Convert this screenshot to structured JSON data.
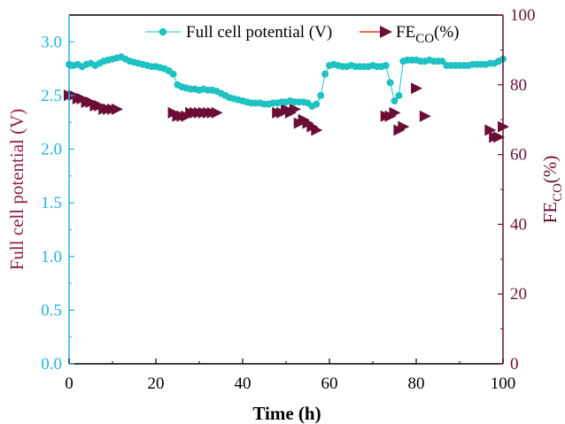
{
  "chart_data": {
    "type": "scatter",
    "colors": {
      "potential": "#1ec2c2",
      "fe": "#6b0e35",
      "left_axis": "#1eb4e6",
      "right_axis": "#6b0e35",
      "left_title": "#8c1e4a",
      "legend_line": "#ff0000"
    },
    "xlabel": "Time (h)",
    "xlim": [
      0,
      100
    ],
    "xticks": [
      0,
      20,
      40,
      60,
      80,
      100
    ],
    "ylabel_left": "Full cell potential (V)",
    "ylim_left": [
      0.0,
      3.25
    ],
    "yticks_left": [
      "0.0",
      "0.5",
      "1.0",
      "1.5",
      "2.0",
      "2.5",
      "3.0"
    ],
    "ylabel_right": "FE",
    "ylabel_right_sub": "CO",
    "ylabel_right_suffix": "(%)",
    "ylim_right": [
      0,
      100
    ],
    "yticks_right": [
      "0",
      "20",
      "40",
      "60",
      "80",
      "100"
    ],
    "legend": {
      "placement": "top-right",
      "potential_label": "Full cell potential (V)",
      "fe_label_main": "FE",
      "fe_label_sub": "CO",
      "fe_label_suffix": "(%)"
    },
    "series": [
      {
        "name": "Full cell potential (V)",
        "axis": "left",
        "marker": "circle",
        "line": true,
        "x": [
          0,
          1,
          2,
          3,
          4,
          5,
          6,
          7,
          8,
          9,
          10,
          11,
          12,
          13,
          14,
          15,
          16,
          17,
          18,
          19,
          20,
          21,
          22,
          23,
          24,
          25,
          26,
          27,
          28,
          29,
          30,
          31,
          32,
          33,
          34,
          35,
          36,
          37,
          38,
          39,
          40,
          41,
          42,
          43,
          44,
          45,
          46,
          47,
          48,
          49,
          50,
          51,
          52,
          53,
          54,
          55,
          56,
          57,
          58,
          59,
          60,
          61,
          62,
          63,
          64,
          65,
          66,
          67,
          68,
          69,
          70,
          71,
          72,
          73,
          74,
          75,
          76,
          77,
          78,
          79,
          80,
          81,
          82,
          83,
          84,
          85,
          86,
          87,
          88,
          89,
          90,
          91,
          92,
          93,
          94,
          95,
          96,
          97,
          98,
          99,
          100
        ],
        "y": [
          2.79,
          2.78,
          2.79,
          2.77,
          2.79,
          2.8,
          2.78,
          2.8,
          2.82,
          2.83,
          2.84,
          2.85,
          2.86,
          2.84,
          2.82,
          2.81,
          2.8,
          2.79,
          2.78,
          2.77,
          2.77,
          2.76,
          2.75,
          2.73,
          2.7,
          2.6,
          2.58,
          2.57,
          2.56,
          2.56,
          2.55,
          2.56,
          2.55,
          2.55,
          2.54,
          2.52,
          2.5,
          2.48,
          2.47,
          2.46,
          2.45,
          2.44,
          2.43,
          2.43,
          2.43,
          2.42,
          2.42,
          2.43,
          2.43,
          2.44,
          2.44,
          2.45,
          2.44,
          2.44,
          2.44,
          2.43,
          2.4,
          2.42,
          2.5,
          2.7,
          2.78,
          2.79,
          2.78,
          2.77,
          2.77,
          2.78,
          2.77,
          2.77,
          2.77,
          2.77,
          2.78,
          2.77,
          2.77,
          2.78,
          2.62,
          2.45,
          2.5,
          2.82,
          2.83,
          2.83,
          2.83,
          2.82,
          2.82,
          2.83,
          2.82,
          2.82,
          2.82,
          2.78,
          2.78,
          2.78,
          2.78,
          2.78,
          2.78,
          2.79,
          2.79,
          2.79,
          2.79,
          2.8,
          2.8,
          2.82,
          2.84
        ]
      },
      {
        "name": "FE_CO(%)",
        "axis": "right",
        "marker": "triangle-right",
        "line": false,
        "x": [
          0,
          1,
          2,
          3,
          4,
          5,
          6,
          7,
          8,
          9,
          10,
          11,
          24,
          25,
          26,
          27,
          28,
          29,
          30,
          31,
          32,
          33,
          34,
          48,
          49,
          50,
          51,
          52,
          53,
          54,
          55,
          56,
          57,
          73,
          74,
          75,
          76,
          77,
          80,
          82,
          97,
          98,
          99,
          100
        ],
        "y": [
          77,
          77,
          76,
          76,
          75,
          75,
          74,
          74,
          73,
          73,
          73,
          73,
          72,
          71,
          71,
          71,
          72,
          72,
          72,
          72,
          72,
          72,
          72,
          72,
          72,
          73,
          72,
          73,
          69,
          70,
          69,
          68,
          67,
          71,
          71,
          72,
          67,
          68,
          79,
          71,
          67,
          65,
          65,
          68
        ]
      }
    ]
  }
}
